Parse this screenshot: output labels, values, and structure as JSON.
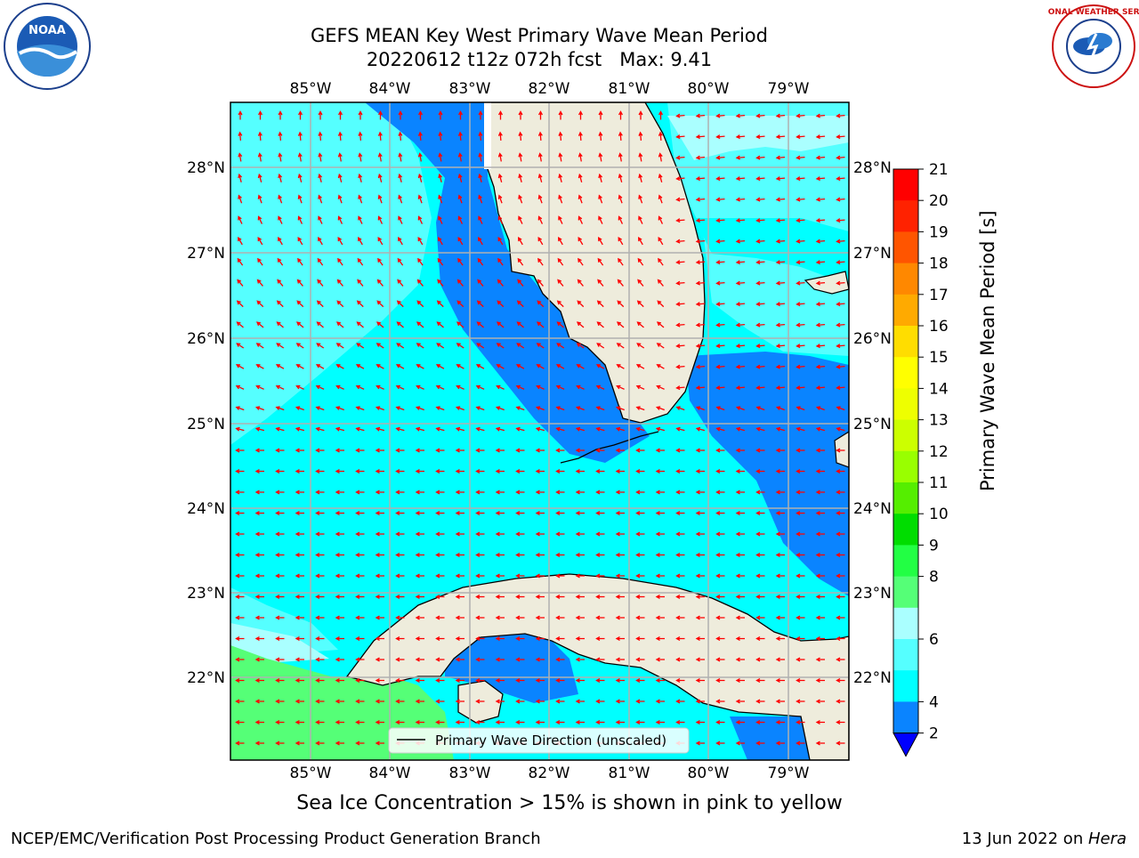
{
  "header": {
    "title_line1": "GEFS MEAN Key West Primary Wave Mean Period",
    "title_line2": "20220612 t12z 072h fcst   Max: 9.41"
  },
  "logos": {
    "left": "NOAA",
    "right": "NATIONAL WEATHER SERVICE"
  },
  "map": {
    "lon_labels": [
      "85°W",
      "84°W",
      "83°W",
      "82°W",
      "81°W",
      "80°W",
      "79°W"
    ],
    "lat_labels": [
      "28°N",
      "27°N",
      "26°N",
      "25°N",
      "24°N",
      "23°N",
      "22°N"
    ],
    "legend": "Primary Wave Direction (unscaled)",
    "colors": {
      "land": "#eeecdc",
      "period_2_4": "#0a84ff",
      "period_4_6": "#00ffff",
      "period_6_8": "#55ffff",
      "period_8_9": "#aaffff",
      "period_9_10": "#55ff77",
      "arrow": "#ff0000"
    }
  },
  "colorbar": {
    "label": "Primary Wave Mean Period [s]",
    "ticks": [
      "21",
      "20",
      "19",
      "18",
      "17",
      "16",
      "15",
      "14",
      "13",
      "12",
      "11",
      "10",
      "9",
      "8",
      "6",
      "4",
      "2"
    ],
    "colors": [
      "#ff0000",
      "#ff2200",
      "#ff5500",
      "#ff8800",
      "#ffaa00",
      "#ffdd00",
      "#ffff00",
      "#eeff00",
      "#ccff00",
      "#99ff00",
      "#55ee00",
      "#00dd00",
      "#22ff44",
      "#55ff77",
      "#aaffff",
      "#55ffff",
      "#00ffff",
      "#0a84ff"
    ]
  },
  "notes": {
    "sea_ice": "Sea Ice Concentration > 15% is shown in pink to yellow"
  },
  "footer": {
    "left": "NCEP/EMC/Verification Post Processing Product Generation Branch",
    "right_date": "13 Jun 2022 on ",
    "right_host": "Hera"
  }
}
